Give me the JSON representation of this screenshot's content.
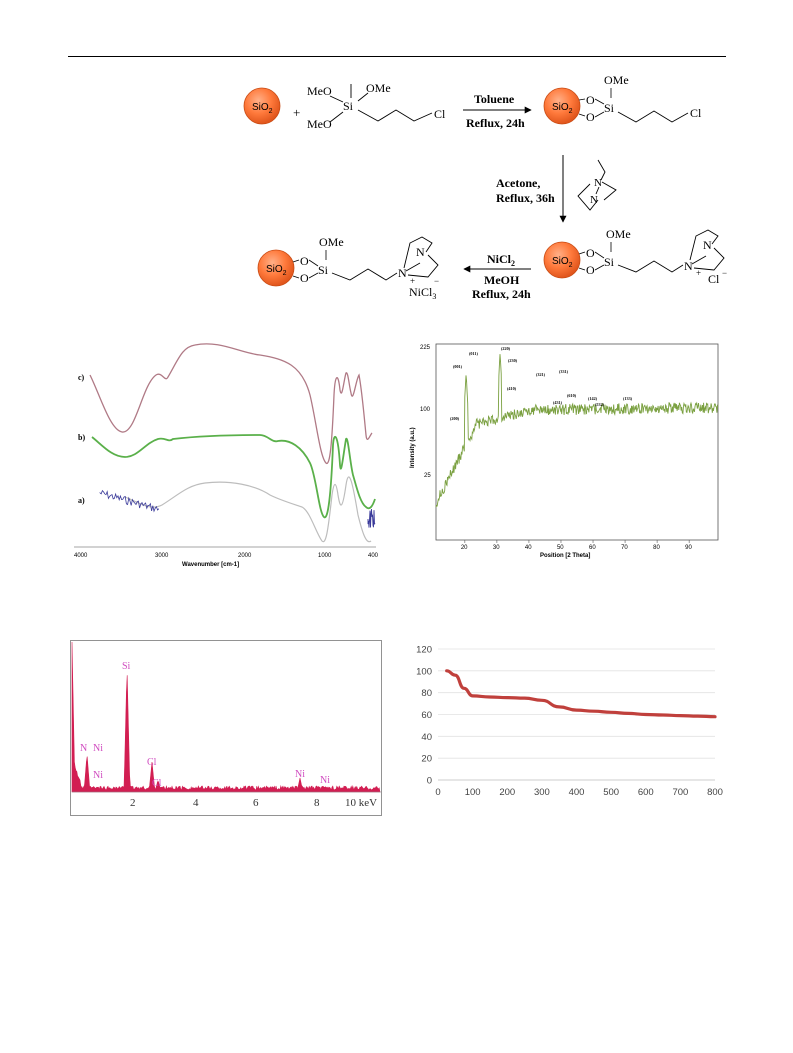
{
  "scheme": {
    "sio2": "SiO",
    "sio2_sub": "2",
    "plus": "+",
    "ome": "OMe",
    "meo": "MeO",
    "si": "Si",
    "cl": "Cl",
    "o": "O",
    "n": "N",
    "step1_top": "Toluene",
    "step1_bottom": "Reflux, 24h",
    "step2_line1": "Acetone,",
    "step2_line2": "Reflux, 36h",
    "step3_top_main": "NiCl",
    "step3_top_sub": "2",
    "step3_mid": "MeOH",
    "step3_bottom": "Reflux, 24h",
    "cl_minus": "Cl",
    "nicl3": "NiCl",
    "nicl3_sub": "3",
    "plus_sign": "+",
    "minus_sign": "−",
    "colors": {
      "sphere": "#ff7a3c",
      "sphere_edge": "#c84a12"
    }
  },
  "ftir": {
    "xlabel": "Wavenumber [cm-1]",
    "xticks": [
      "4000",
      "3000",
      "2000",
      "1000",
      "400"
    ],
    "trace_labels": [
      "c)",
      "b)",
      "a)"
    ],
    "colors": {
      "c": "#b07a86",
      "b": "#5ab04a",
      "a_light": "#bdbdbd",
      "a_dark": "#3a3a9a"
    }
  },
  "xrd": {
    "ylabel": "Intensity (a.u.)",
    "xlabel": "Position [2 Theta]",
    "yticks": [
      "225",
      "100",
      "25"
    ],
    "xticks": [
      "20",
      "30",
      "40",
      "50",
      "60",
      "70",
      "80",
      "90"
    ],
    "peak_labels": [
      "(200)",
      "(001)",
      "(011)",
      "(220)",
      "(230)",
      "(410)",
      "(321)",
      "(431)",
      "(331)",
      "(610)",
      "(142)",
      "(532)",
      "(133)"
    ],
    "color": "#7aa040"
  },
  "eds": {
    "xticks": [
      "2",
      "4",
      "6",
      "8",
      "10 keV"
    ],
    "peak_labels": [
      "Si",
      "N",
      "Ni",
      "Ni",
      "Cl",
      "Cl",
      "Ni",
      "Ni"
    ],
    "colors": {
      "fill": "#d21e52",
      "label": "#d04cc0"
    }
  },
  "tga": {
    "chart_data": {
      "type": "line",
      "x": [
        25,
        50,
        75,
        100,
        150,
        200,
        250,
        300,
        350,
        400,
        450,
        500,
        550,
        600,
        650,
        700,
        750,
        800
      ],
      "values": [
        100,
        96,
        84,
        77,
        76,
        75.5,
        75,
        73,
        67,
        64,
        63,
        62,
        61,
        60,
        59.5,
        59,
        58.5,
        58
      ],
      "xlim": [
        0,
        800
      ],
      "ylim": [
        0,
        120
      ],
      "xticks": [
        "0",
        "100",
        "200",
        "300",
        "400",
        "500",
        "600",
        "700",
        "800"
      ],
      "yticks": [
        "0",
        "20",
        "40",
        "60",
        "80",
        "100",
        "120"
      ],
      "grid": true,
      "color": "#c0403c"
    }
  }
}
